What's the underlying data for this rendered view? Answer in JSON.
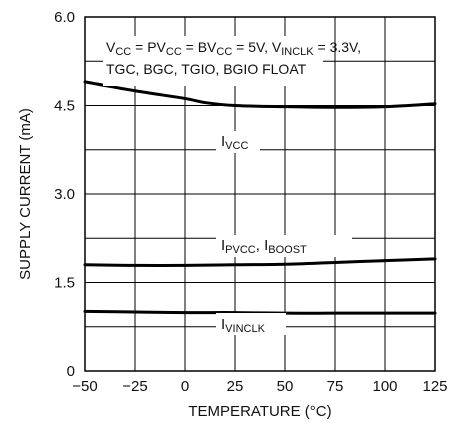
{
  "chart_data": {
    "type": "line",
    "title": "",
    "xlabel": "TEMPERATURE (°C)",
    "ylabel": "SUPPLY CURRENT (mA)",
    "xlim": [
      -50,
      125
    ],
    "ylim": [
      0,
      6.0
    ],
    "x_ticks": [
      "−50",
      "−25",
      "0",
      "25",
      "50",
      "75",
      "100",
      "125"
    ],
    "y_ticks": [
      "0",
      "1.5",
      "3.0",
      "4.5",
      "6.0"
    ],
    "grid": true,
    "annotation": {
      "line1": {
        "segments": [
          "V",
          "CC",
          " = PV",
          "CC",
          " = BV",
          "CC",
          " = 5V, V",
          "INCLK",
          " = 3.3V,"
        ]
      },
      "line2": "TGC, BGC, TGIO, BGIO FLOAT"
    },
    "series": [
      {
        "label_main": "I",
        "label_sub": "VCC",
        "color": "#000000",
        "x": [
          -50,
          -25,
          0,
          10,
          25,
          50,
          75,
          100,
          125
        ],
        "y": [
          4.9,
          4.75,
          4.62,
          4.55,
          4.5,
          4.48,
          4.47,
          4.48,
          4.53
        ]
      },
      {
        "label_main": "I",
        "label_sub": "PVCC",
        "label_main2": ", I",
        "label_sub2": "BOOST",
        "color": "#000000",
        "x": [
          -50,
          -25,
          0,
          25,
          50,
          75,
          100,
          125
        ],
        "y": [
          1.8,
          1.79,
          1.79,
          1.8,
          1.81,
          1.84,
          1.87,
          1.9
        ]
      },
      {
        "label_main": "I",
        "label_sub": "VINCLK",
        "color": "#000000",
        "x": [
          -50,
          -25,
          0,
          25,
          50,
          75,
          100,
          125
        ],
        "y": [
          1.01,
          1.0,
          0.99,
          0.99,
          0.98,
          0.98,
          0.98,
          0.98
        ]
      }
    ]
  }
}
